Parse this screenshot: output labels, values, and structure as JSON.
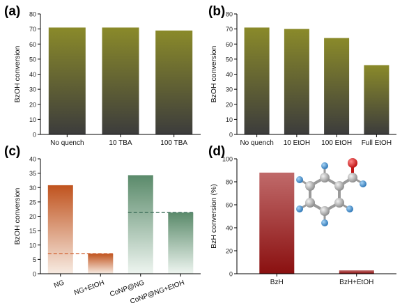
{
  "chart_data": [
    {
      "panel": "(a)",
      "type": "bar",
      "categories": [
        "No quench",
        "10 TBA",
        "100 TBA"
      ],
      "values": [
        71,
        71,
        69
      ],
      "ylabel": "BzOH conversion",
      "xlabel": "",
      "ylim": [
        0,
        80
      ],
      "yticks": [
        0,
        10,
        20,
        30,
        40,
        50,
        60,
        70,
        80
      ],
      "grid": false,
      "colors": {
        "top": "#8a8a2a",
        "bottom": "#3c3c3c"
      }
    },
    {
      "panel": "(b)",
      "type": "bar",
      "categories": [
        "No quench",
        "10 EtOH",
        "100 EtOH",
        "Full EtOH"
      ],
      "values": [
        71,
        70,
        64,
        46
      ],
      "ylabel": "BzOH conversion",
      "xlabel": "",
      "ylim": [
        0,
        80
      ],
      "yticks": [
        0,
        10,
        20,
        30,
        40,
        50,
        60,
        70,
        80
      ],
      "grid": false,
      "colors": {
        "top": "#8a8a2a",
        "bottom": "#3c3c3c"
      }
    },
    {
      "panel": "(c)",
      "type": "bar",
      "categories": [
        "NG",
        "NG+EtOH",
        "CoNP@NG",
        "CoNP@NG+EtOH"
      ],
      "values": [
        30.8,
        7.0,
        34.3,
        21.3
      ],
      "reference_lines": [
        {
          "value": 7.0,
          "color": "#d2693a",
          "from_category": 0,
          "to_category": 1
        },
        {
          "value": 21.3,
          "color": "#3c6e5a",
          "from_category": 2,
          "to_category": 3
        }
      ],
      "ylabel": "BzOH conversion",
      "xlabel": "",
      "ylim": [
        0,
        40
      ],
      "yticks": [
        0,
        5,
        10,
        15,
        20,
        25,
        30,
        35,
        40
      ],
      "grid": false,
      "colors": {
        "NG": {
          "top": "#c0531e",
          "bottom": "#f7ebe2"
        },
        "CoNP@NG": {
          "top": "#5a8a6a",
          "bottom": "#eef5f0"
        }
      }
    },
    {
      "panel": "(d)",
      "type": "bar",
      "categories": [
        "BzH",
        "BzH+EtOH"
      ],
      "values": [
        88,
        3
      ],
      "ylabel": "BzH conversion (%)",
      "xlabel": "",
      "ylim": [
        0,
        100
      ],
      "yticks": [
        0,
        20,
        40,
        60,
        80,
        100
      ],
      "grid": false,
      "colors": {
        "top": "#c06a6a",
        "bottom": "#8a1010"
      }
    }
  ],
  "panels": {
    "a": {
      "label": "(a)"
    },
    "b": {
      "label": "(b)"
    },
    "c": {
      "label": "(c)"
    },
    "d": {
      "label": "(d)"
    }
  }
}
